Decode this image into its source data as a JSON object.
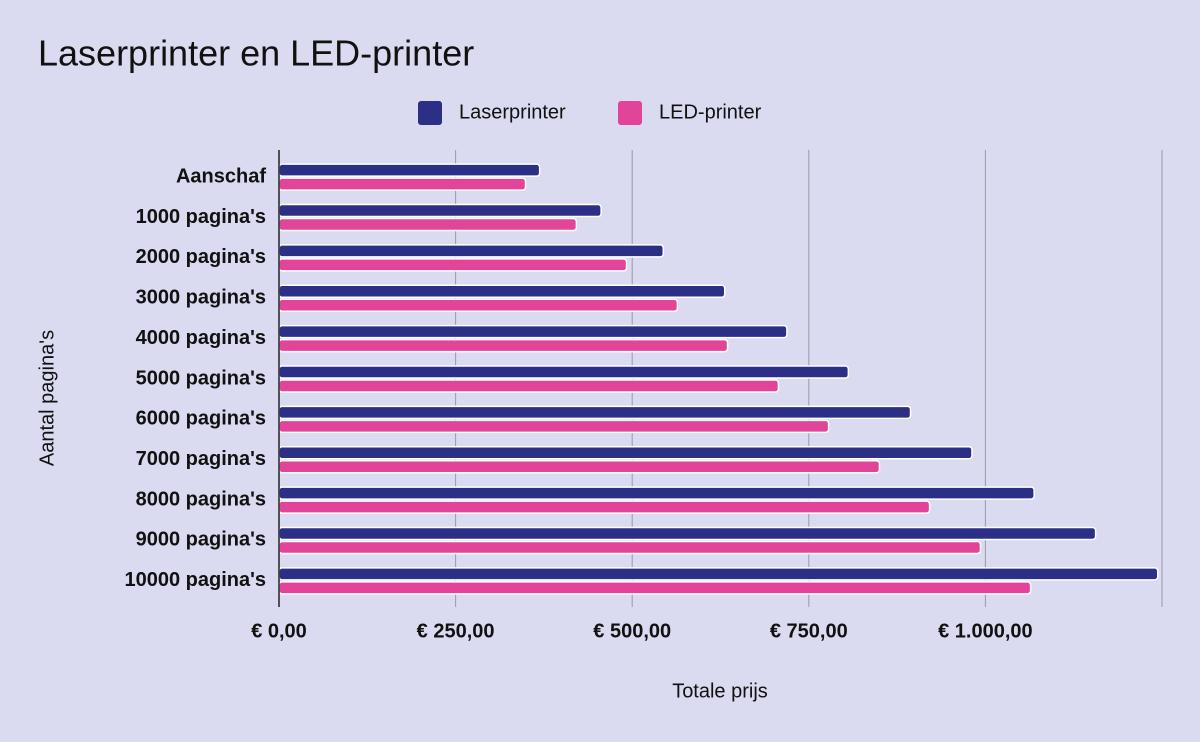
{
  "chart_data": {
    "type": "bar",
    "orientation": "horizontal",
    "title": "Laserprinter en LED-printer",
    "x_label": "Totale prijs",
    "y_label": "Aantal pagina's",
    "categories": [
      "Aanschaf",
      "1000 pagina's",
      "2000 pagina's",
      "3000 pagina's",
      "4000 pagina's",
      "5000 pagina's",
      "6000 pagina's",
      "7000 pagina's",
      "8000 pagina's",
      "9000 pagina's",
      "10000 pagina's"
    ],
    "series": [
      {
        "name": "Laserprinter",
        "color": "#2b2f86",
        "values": [
          369,
          456,
          544,
          631,
          719,
          806,
          894,
          981,
          1069,
          1156,
          1244
        ]
      },
      {
        "name": "LED-printer",
        "color": "#e2449a",
        "values": [
          349,
          421,
          492,
          564,
          635,
          707,
          778,
          850,
          921,
          993,
          1064
        ]
      }
    ],
    "xlim": [
      0,
      1250
    ],
    "xticks": [
      {
        "value": 0,
        "label": "€ 0,00"
      },
      {
        "value": 250,
        "label": "€ 250,00"
      },
      {
        "value": 500,
        "label": "€ 500,00"
      },
      {
        "value": 750,
        "label": "€ 750,00"
      },
      {
        "value": 1000,
        "label": "€ 1.000,00"
      }
    ],
    "grid": true,
    "legend": "top"
  }
}
